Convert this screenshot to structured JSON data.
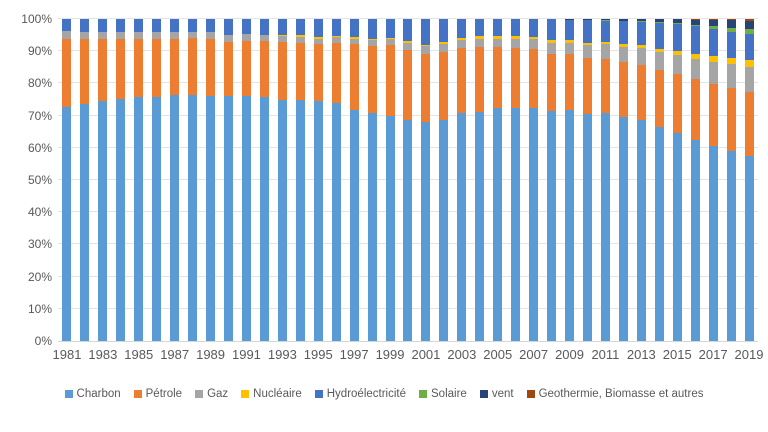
{
  "chart_data": {
    "type": "bar",
    "stacked": true,
    "percent_stacked": true,
    "title": "",
    "xlabel": "",
    "ylabel": "",
    "ylim": [
      0,
      100
    ],
    "grid": true,
    "legend_position": "bottom",
    "y_tick_labels": [
      "0%",
      "10%",
      "20%",
      "30%",
      "40%",
      "50%",
      "60%",
      "70%",
      "80%",
      "90%",
      "100%"
    ],
    "x_tick_labels": [
      "1981",
      "1983",
      "1985",
      "1987",
      "1989",
      "1991",
      "1993",
      "1995",
      "1997",
      "1999",
      "2001",
      "2003",
      "2005",
      "2007",
      "2009",
      "2011",
      "2013",
      "2015",
      "2017",
      "2019"
    ],
    "categories": [
      "1981",
      "1982",
      "1983",
      "1984",
      "1985",
      "1986",
      "1987",
      "1988",
      "1989",
      "1990",
      "1991",
      "1992",
      "1993",
      "1994",
      "1995",
      "1996",
      "1997",
      "1998",
      "1999",
      "2000",
      "2001",
      "2002",
      "2003",
      "2004",
      "2005",
      "2006",
      "2007",
      "2008",
      "2009",
      "2010",
      "2011",
      "2012",
      "2013",
      "2014",
      "2015",
      "2016",
      "2017",
      "2018",
      "2019"
    ],
    "series": [
      {
        "name": "Charbon",
        "color": "#5B9BD5",
        "values": [
          72.7,
          73.7,
          74.6,
          75.3,
          75.9,
          75.9,
          76.3,
          76.4,
          76.2,
          76.2,
          76.1,
          75.7,
          74.7,
          75.0,
          74.6,
          73.9,
          71.7,
          70.9,
          70.0,
          68.5,
          68.0,
          68.5,
          70.9,
          71.2,
          72.4,
          72.4,
          72.5,
          71.5,
          71.6,
          70.5,
          70.9,
          69.5,
          68.5,
          66.6,
          64.5,
          62.4,
          60.6,
          59.0,
          57.6
        ]
      },
      {
        "name": "Pétrole",
        "color": "#ED7D31",
        "values": [
          21.1,
          20.1,
          19.2,
          18.5,
          18.0,
          18.0,
          17.6,
          17.6,
          17.7,
          16.6,
          17.1,
          17.5,
          18.2,
          17.6,
          17.5,
          18.7,
          20.4,
          20.8,
          21.8,
          22.0,
          21.2,
          21.4,
          20.1,
          20.1,
          19.0,
          18.7,
          18.1,
          17.7,
          17.4,
          17.3,
          16.8,
          17.1,
          17.2,
          17.5,
          18.4,
          18.9,
          19.3,
          19.5,
          19.7
        ]
      },
      {
        "name": "Gaz",
        "color": "#A5A5A5",
        "values": [
          2.4,
          2.3,
          2.2,
          2.1,
          2.0,
          2.1,
          2.0,
          2.0,
          2.0,
          2.1,
          2.0,
          1.9,
          1.9,
          1.9,
          1.8,
          1.8,
          1.8,
          1.8,
          1.9,
          2.2,
          2.4,
          2.4,
          2.4,
          2.5,
          2.5,
          2.8,
          3.2,
          3.5,
          3.7,
          4.2,
          4.6,
          4.8,
          5.3,
          5.6,
          5.8,
          6.2,
          6.8,
          7.4,
          7.8
        ]
      },
      {
        "name": "Nucléaire",
        "color": "#FFC000",
        "values": [
          0,
          0,
          0,
          0,
          0,
          0,
          0,
          0,
          0,
          0,
          0,
          0,
          0.1,
          0.4,
          0.4,
          0.4,
          0.4,
          0.4,
          0.4,
          0.4,
          0.4,
          0.5,
          0.8,
          0.8,
          0.8,
          0.7,
          0.7,
          0.7,
          0.7,
          0.7,
          0.7,
          0.8,
          0.9,
          1.0,
          1.3,
          1.6,
          1.8,
          2.0,
          2.2
        ]
      },
      {
        "name": "Hydroélectricité",
        "color": "#4472C4",
        "values": [
          3.8,
          3.9,
          4.0,
          4.1,
          4.1,
          4.0,
          4.1,
          4.0,
          4.1,
          5.1,
          4.8,
          4.9,
          5.1,
          5.1,
          5.7,
          5.2,
          5.7,
          6.1,
          5.9,
          6.9,
          8.0,
          7.2,
          5.8,
          5.4,
          5.3,
          5.4,
          5.5,
          6.5,
          6.4,
          7.0,
          6.5,
          7.2,
          7.2,
          8.1,
          8.4,
          8.6,
          8.3,
          8.1,
          8.0
        ]
      },
      {
        "name": "Solaire",
        "color": "#70AD47",
        "values": [
          0,
          0,
          0,
          0,
          0,
          0,
          0,
          0,
          0,
          0,
          0,
          0,
          0,
          0,
          0,
          0,
          0,
          0,
          0,
          0,
          0,
          0,
          0,
          0,
          0,
          0,
          0,
          0,
          0,
          0,
          0.1,
          0.1,
          0.2,
          0.3,
          0.4,
          0.6,
          0.9,
          1.3,
          1.6
        ]
      },
      {
        "name": "vent",
        "color": "#264478",
        "values": [
          0,
          0,
          0,
          0,
          0,
          0,
          0,
          0,
          0,
          0,
          0,
          0,
          0,
          0,
          0,
          0,
          0,
          0,
          0,
          0,
          0,
          0,
          0,
          0,
          0,
          0,
          0,
          0.1,
          0.2,
          0.3,
          0.4,
          0.5,
          0.7,
          0.8,
          1.1,
          1.5,
          2.0,
          2.3,
          2.6
        ]
      },
      {
        "name": "Geothermie, Biomasse et autres",
        "color": "#9E480E",
        "values": [
          0,
          0,
          0,
          0,
          0,
          0,
          0,
          0,
          0,
          0,
          0,
          0,
          0,
          0,
          0,
          0,
          0,
          0,
          0,
          0,
          0,
          0,
          0,
          0,
          0,
          0,
          0,
          0,
          0,
          0,
          0,
          0,
          0,
          0.1,
          0.1,
          0.2,
          0.3,
          0.4,
          0.5
        ]
      }
    ]
  },
  "style": {
    "axis_text_color": "#595959",
    "gridline_color": "#e4e4e4",
    "background": "#ffffff"
  }
}
